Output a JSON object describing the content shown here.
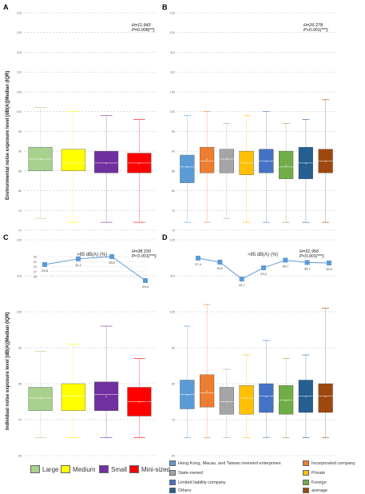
{
  "yaxis_top": "Environmental noise exposure level [dB(A)]Median (IQR)",
  "yaxis_bottom": "Individual noise exposure level [dB(A)]Median (IQR)",
  "legend_size": [
    {
      "label": "Large",
      "color": "#a9d18e"
    },
    {
      "label": "Medium",
      "color": "#ffff00"
    },
    {
      "label": "Small",
      "color": "#7030a0"
    },
    {
      "label": "Mini-sized",
      "color": "#ff0000"
    }
  ],
  "legend_type": [
    {
      "label": "Hong Kong, Macau, and Taiwan invested enterprises",
      "color": "#5b9bd5"
    },
    {
      "label": "Incorporated company",
      "color": "#ed7d31"
    },
    {
      "label": "State-owned",
      "color": "#a5a5a5"
    },
    {
      "label": "Private",
      "color": "#ffc000"
    },
    {
      "label": "Limited liability company",
      "color": "#4472c4"
    },
    {
      "label": "Foreign",
      "color": "#70ad47"
    },
    {
      "label": "Others",
      "color": "#255e91"
    },
    {
      "label": "average",
      "color": "#9e480e"
    }
  ],
  "chart_data": [
    {
      "panel": "A",
      "type": "box",
      "ylim": [
        70,
        125
      ],
      "yticks": [
        "70",
        "75",
        "80",
        "85",
        "90",
        "95",
        "100",
        "105",
        "110",
        "115",
        "120",
        "125"
      ],
      "stat_H": "H=11.943",
      "stat_P": "P=0.008(**)",
      "series": [
        {
          "name": "Large",
          "color": "#a9d18e",
          "min": 73,
          "q1": 85,
          "median": 88,
          "q3": 91,
          "max": 101,
          "mean": 88
        },
        {
          "name": "Medium",
          "color": "#ffff00",
          "min": 72,
          "q1": 85,
          "median": 87,
          "q3": 90.5,
          "max": 100,
          "mean": 87
        },
        {
          "name": "Small",
          "color": "#7030a0",
          "min": 72,
          "q1": 84.5,
          "median": 87,
          "q3": 90,
          "max": 99,
          "mean": 87
        },
        {
          "name": "Mini-sized",
          "color": "#ff0000",
          "min": 72,
          "q1": 84.5,
          "median": 87,
          "q3": 89.5,
          "max": 98,
          "mean": 87
        }
      ]
    },
    {
      "panel": "B",
      "type": "box",
      "ylim": [
        70,
        125
      ],
      "yticks": [
        "70",
        "75",
        "80",
        "85",
        "90",
        "95",
        "100",
        "105",
        "110",
        "115",
        "120",
        "125"
      ],
      "stat_H": "H=26.278",
      "stat_P": "P<0.001(***)",
      "series": [
        {
          "name": "Hong Kong, Macau, and Taiwan invested enterprises",
          "color": "#5b9bd5",
          "min": 72,
          "q1": 82,
          "median": 86,
          "q3": 89,
          "max": 99,
          "mean": 86
        },
        {
          "name": "Incorporated company",
          "color": "#ed7d31",
          "min": 72,
          "q1": 84.5,
          "median": 87.5,
          "q3": 91,
          "max": 100,
          "mean": 88
        },
        {
          "name": "State-owned",
          "color": "#a5a5a5",
          "min": 73,
          "q1": 84.5,
          "median": 88,
          "q3": 90.5,
          "max": 97,
          "mean": 88
        },
        {
          "name": "Private",
          "color": "#ffc000",
          "min": 72,
          "q1": 84,
          "median": 87,
          "q3": 90,
          "max": 99,
          "mean": 87
        },
        {
          "name": "Limited liability company",
          "color": "#4472c4",
          "min": 72,
          "q1": 84.5,
          "median": 87.5,
          "q3": 90.5,
          "max": 100,
          "mean": 87.5
        },
        {
          "name": "Foreign",
          "color": "#70ad47",
          "min": 72,
          "q1": 83,
          "median": 86,
          "q3": 90,
          "max": 97,
          "mean": 86.5
        },
        {
          "name": "Others",
          "color": "#255e91",
          "min": 72,
          "q1": 83,
          "median": 87,
          "q3": 91,
          "max": 98,
          "mean": 87
        },
        {
          "name": "average",
          "color": "#9e480e",
          "min": 72,
          "q1": 84.5,
          "median": 87.5,
          "q3": 90.5,
          "max": 103,
          "mean": 87.5
        }
      ]
    },
    {
      "panel": "C",
      "type": "box",
      "ylim": [
        65,
        125
      ],
      "yticks": [
        "65",
        "75",
        "85",
        "95",
        "105",
        "115",
        "125"
      ],
      "stat_H": "H=38.150",
      "stat_P": "P<0.001(***)",
      "inset_title": ">85 dB(A) (%)",
      "inset_yticks": [
        "25",
        "27",
        "29",
        "31",
        "33"
      ],
      "inset_values": [
        29.8,
        32.1,
        33.0,
        23.4
      ],
      "inset_labels": [
        "29.8",
        "32.1",
        "33.0",
        "23.4"
      ],
      "series": [
        {
          "name": "Large",
          "color": "#a9d18e",
          "min": 70,
          "q1": 77.5,
          "median": 81,
          "q3": 84,
          "max": 94,
          "mean": 81
        },
        {
          "name": "Medium",
          "color": "#ffff00",
          "min": 70,
          "q1": 77.5,
          "median": 81.5,
          "q3": 85,
          "max": 96,
          "mean": 81.5
        },
        {
          "name": "Small",
          "color": "#7030a0",
          "min": 70,
          "q1": 77.5,
          "median": 82,
          "q3": 85.5,
          "max": 101,
          "mean": 81.5
        },
        {
          "name": "Mini-sized",
          "color": "#ff0000",
          "min": 70,
          "q1": 76,
          "median": 80,
          "q3": 84,
          "max": 92,
          "mean": 80
        }
      ]
    },
    {
      "panel": "D",
      "type": "box",
      "ylim": [
        65,
        125
      ],
      "yticks": [
        "65",
        "75",
        "85",
        "95",
        "105",
        "115",
        "125"
      ],
      "stat_H": "H=31.956",
      "stat_P": "P<0.001(***)",
      "inset_title": ">85 dB(A) (%)",
      "inset_values": [
        37.4,
        34.0,
        19.7,
        29.2,
        35.7,
        33.7,
        33.3
      ],
      "inset_labels": [
        "37.4",
        "34.0",
        "19.7",
        "29.2",
        "35.7",
        "33.7",
        "33.3"
      ],
      "series": [
        {
          "name": "Hong Kong, Macau, and Taiwan invested enterprises",
          "color": "#5b9bd5",
          "min": 70,
          "q1": 78,
          "median": 82,
          "q3": 86,
          "max": 101,
          "mean": 82
        },
        {
          "name": "Incorporated company",
          "color": "#ed7d31",
          "min": 70,
          "q1": 78.5,
          "median": 82.5,
          "q3": 87.5,
          "max": 107,
          "mean": 83
        },
        {
          "name": "State-owned",
          "color": "#a5a5a5",
          "min": 70,
          "q1": 76.5,
          "median": 80,
          "q3": 84,
          "max": 89,
          "mean": 80
        },
        {
          "name": "Private",
          "color": "#ffc000",
          "min": 70,
          "q1": 76.5,
          "median": 81,
          "q3": 84.5,
          "max": 93,
          "mean": 81
        },
        {
          "name": "Limited liability company",
          "color": "#4472c4",
          "min": 70,
          "q1": 77,
          "median": 81.5,
          "q3": 85,
          "max": 97,
          "mean": 81.5
        },
        {
          "name": "Foreign",
          "color": "#70ad47",
          "min": 70,
          "q1": 76.5,
          "median": 80.5,
          "q3": 84.5,
          "max": 92,
          "mean": 80.5
        },
        {
          "name": "Others",
          "color": "#255e91",
          "min": 70,
          "q1": 77,
          "median": 81.5,
          "q3": 86,
          "max": 93,
          "mean": 81.5
        },
        {
          "name": "average",
          "color": "#9e480e",
          "min": 70,
          "q1": 77,
          "median": 81.5,
          "q3": 85,
          "max": 106,
          "mean": 81.5
        }
      ]
    }
  ]
}
